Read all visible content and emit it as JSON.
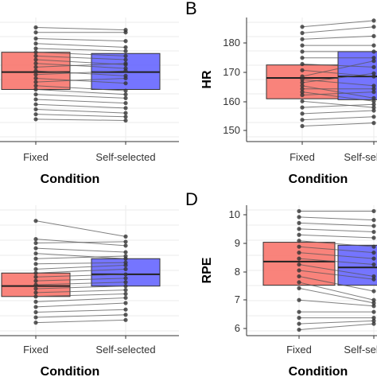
{
  "chart_data": [
    {
      "panel_letter": "",
      "type": "boxplot",
      "xlabel": "Condition",
      "ylabel": "",
      "categories": [
        "Fixed",
        "Self-selected"
      ],
      "yticks": [],
      "ylim": [
        0,
        10
      ],
      "grid": true,
      "boxes": [
        {
          "q1": 4.2,
          "median": 5.6,
          "q3": 7.2
        },
        {
          "q1": 4.2,
          "median": 5.6,
          "q3": 7.1
        }
      ],
      "pairs": [
        [
          9.2,
          9.0
        ],
        [
          8.8,
          8.8
        ],
        [
          8.3,
          8.1
        ],
        [
          7.9,
          7.6
        ],
        [
          7.5,
          7.3
        ],
        [
          7.2,
          6.9
        ],
        [
          6.9,
          6.6
        ],
        [
          6.6,
          6.2
        ],
        [
          6.3,
          5.9
        ],
        [
          6.0,
          6.3
        ],
        [
          5.7,
          5.3
        ],
        [
          5.4,
          5.7
        ],
        [
          5.1,
          4.7
        ],
        [
          4.8,
          5.1
        ],
        [
          4.5,
          4.1
        ],
        [
          4.2,
          3.8
        ],
        [
          3.8,
          3.5
        ],
        [
          3.4,
          3.1
        ],
        [
          3.0,
          2.7
        ],
        [
          2.6,
          2.3
        ],
        [
          2.2,
          2.0
        ],
        [
          1.8,
          1.7
        ]
      ]
    },
    {
      "panel_letter": "B",
      "type": "boxplot",
      "xlabel": "Condition",
      "ylabel": "HR",
      "categories": [
        "Fixed",
        "Self-selected"
      ],
      "yticks": [
        "150",
        "160",
        "170",
        "180"
      ],
      "ylim": [
        147,
        187
      ],
      "grid": true,
      "boxes": [
        {
          "q1": 160.8,
          "median": 167.5,
          "q3": 171.7
        },
        {
          "q1": 160.5,
          "median": 168.0,
          "q3": 176.0
        }
      ],
      "pairs": [
        [
          184,
          186
        ],
        [
          182,
          184
        ],
        [
          180,
          181
        ],
        [
          178,
          178
        ],
        [
          176,
          176
        ],
        [
          174,
          174
        ],
        [
          172,
          171
        ],
        [
          170,
          168
        ],
        [
          168,
          173
        ],
        [
          167,
          165
        ],
        [
          166,
          169
        ],
        [
          165,
          161
        ],
        [
          164,
          164
        ],
        [
          163,
          160
        ],
        [
          162,
          163
        ],
        [
          160,
          158
        ],
        [
          158,
          159
        ],
        [
          156,
          157
        ],
        [
          154,
          155
        ],
        [
          152,
          153
        ]
      ]
    },
    {
      "panel_letter": "",
      "type": "boxplot",
      "xlabel": "Condition",
      "ylabel": "",
      "categories": [
        "Fixed",
        "Self-selected"
      ],
      "yticks": [],
      "ylim": [
        0,
        10
      ],
      "grid": true,
      "boxes": [
        {
          "q1": 3.0,
          "median": 3.8,
          "q3": 4.8
        },
        {
          "q1": 3.8,
          "median": 4.7,
          "q3": 5.9
        }
      ],
      "pairs": [
        [
          8.8,
          7.6
        ],
        [
          7.4,
          6.9
        ],
        [
          7.1,
          7.2
        ],
        [
          6.7,
          6.4
        ],
        [
          6.3,
          5.9
        ],
        [
          5.9,
          6.1
        ],
        [
          5.5,
          5.6
        ],
        [
          5.1,
          5.4
        ],
        [
          4.8,
          5.1
        ],
        [
          4.5,
          4.7
        ],
        [
          4.2,
          4.4
        ],
        [
          3.9,
          4.1
        ],
        [
          3.6,
          3.8
        ],
        [
          3.3,
          3.5
        ],
        [
          3.0,
          3.2
        ],
        [
          2.6,
          2.9
        ],
        [
          2.2,
          2.5
        ],
        [
          1.8,
          2.0
        ],
        [
          1.4,
          1.6
        ],
        [
          1.0,
          1.2
        ]
      ]
    },
    {
      "panel_letter": "D",
      "type": "boxplot",
      "xlabel": "Condition",
      "ylabel": "RPE",
      "categories": [
        "Fixed",
        "Self-selected"
      ],
      "yticks": [
        "6",
        "7",
        "8",
        "9",
        "10"
      ],
      "ylim": [
        5.8,
        10.2
      ],
      "grid": true,
      "boxes": [
        {
          "q1": 7.5,
          "median": 8.3,
          "q3": 8.95
        },
        {
          "q1": 7.5,
          "median": 8.1,
          "q3": 8.85
        }
      ],
      "pairs": [
        [
          10,
          10
        ],
        [
          9.8,
          9.7
        ],
        [
          9.6,
          9.5
        ],
        [
          9.4,
          9.3
        ],
        [
          9.2,
          9.1
        ],
        [
          9.0,
          8.8
        ],
        [
          8.8,
          8.6
        ],
        [
          8.6,
          8.4
        ],
        [
          8.4,
          8.2
        ],
        [
          8.2,
          7.8
        ],
        [
          8.0,
          7.7
        ],
        [
          7.8,
          7.3
        ],
        [
          7.6,
          7.0
        ],
        [
          7.4,
          6.9
        ],
        [
          7.0,
          6.8
        ],
        [
          6.6,
          6.6
        ],
        [
          6.4,
          6.4
        ],
        [
          6.2,
          6.3
        ],
        [
          6.0,
          6.2
        ]
      ]
    }
  ],
  "colors": {
    "fixed_box": "#F8766D",
    "selfselected_box": "#6666FF",
    "lines": "#555555",
    "points": "#333333",
    "grid": "#EBEBEB"
  }
}
